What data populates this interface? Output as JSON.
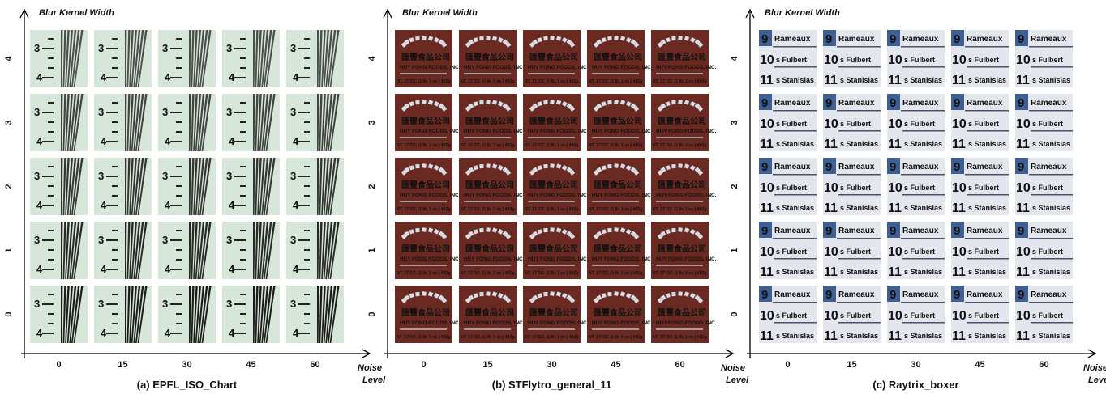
{
  "figure": {
    "y_axis_label": "Blur Kernel Width",
    "x_axis_label_line1": "Noise",
    "x_axis_label_line2": "Level",
    "x_ticks": [
      "0",
      "15",
      "30",
      "45",
      "60"
    ],
    "y_ticks": [
      "0",
      "1",
      "2",
      "3",
      "4"
    ],
    "panels": [
      {
        "id": "a",
        "caption": "(a) EPFL_ISO_Chart",
        "kind": "iso",
        "tile_text": {
          "n3": "3",
          "n4": "4"
        }
      },
      {
        "id": "b",
        "caption": "(b) STFlytro_general_11",
        "kind": "sauce",
        "tile_text": {
          "cn": "匯豐食品公司",
          "brand": "HUY FONG FOODS, INC.",
          "weight": "NT. 17 OZ. (1 lb. 1 oz.) 482g"
        }
      },
      {
        "id": "c",
        "caption": "(c) Raytrix_boxer",
        "kind": "sign",
        "tile_text": {
          "n9": "9",
          "r1": "Rameaux",
          "n10": "10",
          "r2": "s Fulbert",
          "n11": "11",
          "r3": "s Stanislas"
        }
      }
    ],
    "colors": {
      "iso_bg": "#d6e6d8",
      "sauce_bg": "#6a2a22",
      "sign_bg": "#e4e6ee",
      "sign_badge": "#3f5f93"
    }
  }
}
